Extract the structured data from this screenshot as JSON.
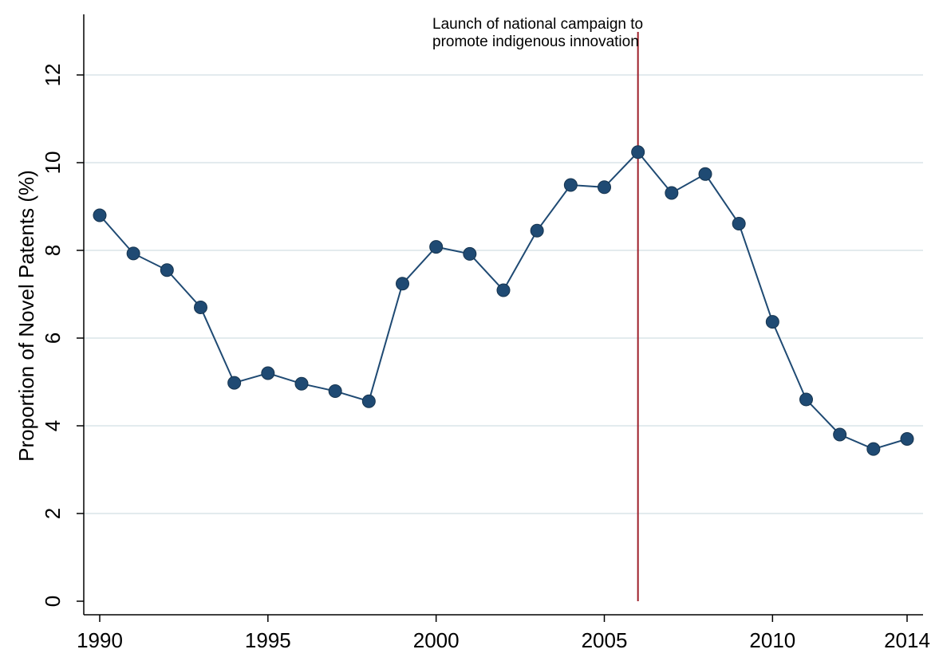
{
  "chart_data": {
    "type": "line",
    "title": "",
    "xlabel": "",
    "ylabel": "Proportion of Novel Patents (%)",
    "xlim": [
      1990,
      2014
    ],
    "ylim": [
      0,
      13
    ],
    "x_ticks": [
      1990,
      1995,
      2000,
      2005,
      2010,
      2014
    ],
    "y_ticks": [
      0,
      2,
      4,
      6,
      8,
      10,
      12
    ],
    "grid": "horizontal",
    "legend": "none",
    "series": [
      {
        "x": [
          1990,
          1991,
          1992,
          1993,
          1994,
          1995,
          1996,
          1997,
          1998,
          1999,
          2000,
          2001,
          2002,
          2003,
          2004,
          2005,
          2006,
          2007,
          2008,
          2009,
          2010,
          2011,
          2012,
          2013,
          2014
        ],
        "values": [
          8.8,
          7.93,
          7.55,
          6.7,
          4.98,
          5.2,
          4.96,
          4.79,
          4.56,
          7.24,
          8.08,
          7.92,
          7.09,
          8.45,
          9.49,
          9.44,
          10.24,
          9.31,
          9.74,
          8.61,
          6.37,
          4.6,
          3.8,
          3.47,
          3.7
        ]
      }
    ],
    "annotations": [
      {
        "type": "vline",
        "x": 2006,
        "text_lines": [
          "Launch of national campaign to",
          "promote indigenous innovation"
        ]
      }
    ],
    "colors": {
      "series": "#1f4a73",
      "marker": "#1f4a73",
      "vline": "#9e1f2a",
      "grid": "#e3ebee",
      "axis": "#000000"
    }
  }
}
